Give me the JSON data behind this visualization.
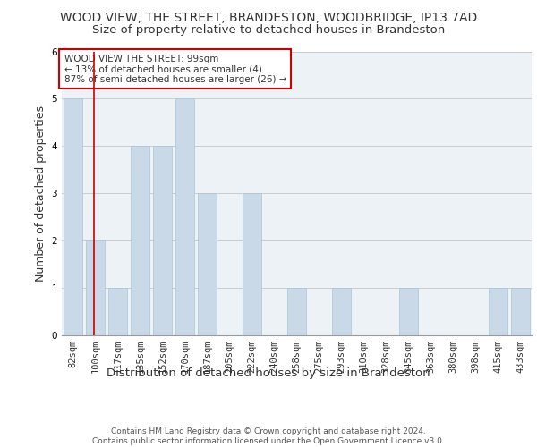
{
  "title": "WOOD VIEW, THE STREET, BRANDESTON, WOODBRIDGE, IP13 7AD",
  "subtitle": "Size of property relative to detached houses in Brandeston",
  "xlabel": "Distribution of detached houses by size in Brandeston",
  "ylabel": "Number of detached properties",
  "categories": [
    "82sqm",
    "100sqm",
    "117sqm",
    "135sqm",
    "152sqm",
    "170sqm",
    "187sqm",
    "205sqm",
    "222sqm",
    "240sqm",
    "258sqm",
    "275sqm",
    "293sqm",
    "310sqm",
    "328sqm",
    "345sqm",
    "363sqm",
    "380sqm",
    "398sqm",
    "415sqm",
    "433sqm"
  ],
  "values": [
    5,
    2,
    1,
    4,
    4,
    5,
    3,
    0,
    3,
    0,
    1,
    0,
    1,
    0,
    0,
    1,
    0,
    0,
    0,
    1,
    1
  ],
  "bar_color": "#c9d9e8",
  "bar_edgecolor": "#a8c4d8",
  "annotation_box_text": "WOOD VIEW THE STREET: 99sqm\n← 13% of detached houses are smaller (4)\n87% of semi-detached houses are larger (26) →",
  "annotation_box_color": "#ffffff",
  "annotation_box_edgecolor": "#cc0000",
  "red_line_x": 0.95,
  "ylim": [
    0,
    6
  ],
  "yticks": [
    0,
    1,
    2,
    3,
    4,
    5,
    6
  ],
  "grid_color": "#cccccc",
  "background_color": "#edf2f7",
  "footer_text": "Contains HM Land Registry data © Crown copyright and database right 2024.\nContains public sector information licensed under the Open Government Licence v3.0.",
  "title_fontsize": 10,
  "subtitle_fontsize": 9.5,
  "xlabel_fontsize": 9.5,
  "ylabel_fontsize": 9,
  "tick_fontsize": 7.5,
  "annotation_fontsize": 7.5,
  "footer_fontsize": 6.5
}
